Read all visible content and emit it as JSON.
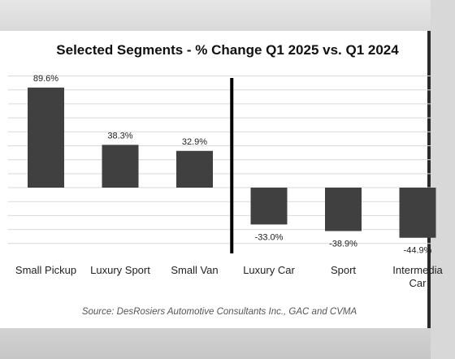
{
  "chart_data": {
    "type": "bar",
    "title": "Selected Segments - % Change Q1 2025 vs. Q1 2024",
    "categories": [
      "Small Pickup",
      "Luxury Sport",
      "Small Van",
      "Luxury Car",
      "Sport",
      "Intermediate Car"
    ],
    "category_lines": [
      [
        "Small Pickup"
      ],
      [
        "Luxury Sport"
      ],
      [
        "Small Van"
      ],
      [
        "Luxury Car"
      ],
      [
        "Sport"
      ],
      [
        "Intermedia",
        "Car"
      ]
    ],
    "values": [
      89.6,
      38.3,
      32.9,
      -33.0,
      -38.9,
      -44.9
    ],
    "data_labels": [
      "89.6%",
      "38.3%",
      "32.9%",
      "-33.0%",
      "-38.9%",
      "-44.9%"
    ],
    "ylim": [
      -50,
      100
    ],
    "xlabel": "",
    "ylabel": "",
    "grid": true,
    "bar_color": "#404040",
    "divider_after_category": 2,
    "source": "Source: DesRosiers Automotive Consultants Inc., GAC and CVMA"
  }
}
